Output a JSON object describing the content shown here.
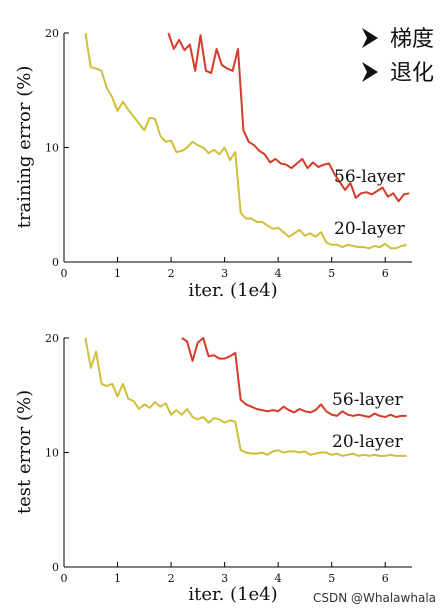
{
  "bullets": [
    {
      "icon": "arrow-bullet-icon",
      "text": "梯度"
    },
    {
      "icon": "arrow-bullet-icon",
      "text": "退化"
    }
  ],
  "watermark": "CSDN @Whalawhala",
  "colors": {
    "s56": "#d63b2a",
    "s20": "#cfc03a",
    "axis": "#000000"
  },
  "chart_data": [
    {
      "type": "line",
      "xlabel": "iter. (1e4)",
      "ylabel": "training error (%)",
      "xlim": [
        0,
        6.5
      ],
      "ylim": [
        0,
        20
      ],
      "xticks": [
        0,
        1,
        2,
        3,
        4,
        5,
        6
      ],
      "yticks": [
        0,
        10,
        20
      ],
      "series": [
        {
          "name": "56-layer",
          "color": "#d63b2a",
          "x": [
            1.95,
            2.05,
            2.15,
            2.25,
            2.35,
            2.45,
            2.55,
            2.65,
            2.75,
            2.85,
            2.95,
            3.05,
            3.15,
            3.25,
            3.35,
            3.45,
            3.55,
            3.65,
            3.75,
            3.85,
            3.95,
            4.05,
            4.15,
            4.25,
            4.35,
            4.45,
            4.55,
            4.65,
            4.75,
            4.85,
            4.95,
            5.05,
            5.15,
            5.25,
            5.35,
            5.45,
            5.55,
            5.65,
            5.75,
            5.85,
            5.95,
            6.05,
            6.15,
            6.25,
            6.35,
            6.45
          ],
          "values": [
            20.0,
            18.6,
            19.4,
            18.5,
            19.0,
            16.7,
            19.8,
            16.7,
            16.5,
            18.6,
            17.2,
            16.9,
            16.7,
            18.6,
            11.5,
            10.5,
            10.2,
            9.7,
            9.4,
            8.7,
            9.0,
            8.6,
            8.5,
            8.2,
            8.6,
            9.0,
            8.2,
            8.7,
            8.3,
            8.5,
            8.6,
            7.7,
            7.0,
            6.3,
            6.9,
            5.6,
            6.0,
            6.1,
            5.9,
            6.2,
            6.5,
            5.7,
            6.0,
            5.3,
            5.9,
            6.0
          ]
        },
        {
          "name": "20-layer",
          "color": "#cfc03a",
          "x": [
            0.4,
            0.5,
            0.6,
            0.7,
            0.8,
            0.9,
            1.0,
            1.1,
            1.2,
            1.3,
            1.4,
            1.5,
            1.6,
            1.7,
            1.8,
            1.9,
            2.0,
            2.1,
            2.2,
            2.3,
            2.4,
            2.5,
            2.6,
            2.7,
            2.8,
            2.9,
            3.0,
            3.1,
            3.2,
            3.3,
            3.4,
            3.5,
            3.6,
            3.7,
            3.8,
            3.9,
            4.0,
            4.1,
            4.2,
            4.3,
            4.4,
            4.5,
            4.6,
            4.7,
            4.8,
            4.9,
            5.0,
            5.1,
            5.2,
            5.3,
            5.4,
            5.5,
            5.6,
            5.7,
            5.8,
            5.9,
            6.0,
            6.1,
            6.2,
            6.3,
            6.4
          ],
          "values": [
            20.0,
            17.0,
            16.9,
            16.7,
            15.2,
            14.4,
            13.2,
            14.0,
            13.3,
            12.7,
            12.1,
            11.5,
            12.6,
            12.5,
            11.0,
            10.5,
            10.6,
            9.6,
            9.7,
            10.0,
            10.5,
            10.2,
            10.0,
            9.5,
            9.8,
            9.4,
            10.0,
            8.9,
            9.6,
            4.3,
            3.8,
            3.8,
            3.5,
            3.5,
            3.2,
            2.9,
            3.0,
            2.6,
            2.2,
            2.5,
            2.8,
            2.3,
            2.5,
            2.2,
            2.6,
            1.7,
            1.5,
            1.5,
            1.3,
            1.5,
            1.4,
            1.3,
            1.3,
            1.2,
            1.4,
            1.3,
            1.6,
            1.2,
            1.2,
            1.4,
            1.5
          ]
        }
      ]
    },
    {
      "type": "line",
      "xlabel": "iter. (1e4)",
      "ylabel": "test error (%)",
      "xlim": [
        0,
        6.5
      ],
      "ylim": [
        0,
        20
      ],
      "xticks": [
        0,
        1,
        2,
        3,
        4,
        5,
        6
      ],
      "yticks": [
        0,
        10,
        20
      ],
      "series": [
        {
          "name": "56-layer",
          "color": "#d63b2a",
          "x": [
            2.2,
            2.3,
            2.4,
            2.5,
            2.6,
            2.7,
            2.8,
            2.9,
            3.0,
            3.1,
            3.2,
            3.3,
            3.4,
            3.5,
            3.6,
            3.7,
            3.8,
            3.9,
            4.0,
            4.1,
            4.2,
            4.3,
            4.4,
            4.5,
            4.6,
            4.7,
            4.8,
            4.9,
            5.0,
            5.1,
            5.2,
            5.3,
            5.4,
            5.5,
            5.6,
            5.7,
            5.8,
            5.9,
            6.0,
            6.1,
            6.2,
            6.3,
            6.4
          ],
          "values": [
            20.0,
            19.7,
            18.0,
            19.6,
            20.0,
            18.4,
            18.5,
            18.2,
            18.2,
            18.4,
            18.7,
            14.6,
            14.2,
            14.0,
            13.8,
            13.7,
            13.6,
            13.7,
            13.6,
            14.0,
            13.7,
            13.5,
            13.8,
            13.6,
            13.5,
            13.7,
            14.2,
            13.6,
            13.3,
            13.2,
            13.6,
            13.3,
            13.2,
            13.3,
            13.2,
            13.1,
            13.4,
            13.2,
            13.1,
            13.3,
            13.1,
            13.2,
            13.2
          ]
        },
        {
          "name": "20-layer",
          "color": "#cfc03a",
          "x": [
            0.4,
            0.5,
            0.6,
            0.7,
            0.8,
            0.9,
            1.0,
            1.1,
            1.2,
            1.3,
            1.4,
            1.5,
            1.6,
            1.7,
            1.8,
            1.9,
            2.0,
            2.1,
            2.2,
            2.3,
            2.4,
            2.5,
            2.6,
            2.7,
            2.8,
            2.9,
            3.0,
            3.1,
            3.2,
            3.3,
            3.4,
            3.5,
            3.6,
            3.7,
            3.8,
            3.9,
            4.0,
            4.1,
            4.2,
            4.3,
            4.4,
            4.5,
            4.6,
            4.7,
            4.8,
            4.9,
            5.0,
            5.1,
            5.2,
            5.3,
            5.4,
            5.5,
            5.6,
            5.7,
            5.8,
            5.9,
            6.0,
            6.1,
            6.2,
            6.3,
            6.4
          ],
          "values": [
            20.0,
            17.4,
            18.8,
            16.0,
            15.8,
            16.0,
            14.9,
            16.0,
            14.7,
            14.5,
            13.8,
            14.2,
            13.9,
            14.4,
            14.0,
            14.3,
            13.3,
            13.7,
            13.3,
            13.8,
            13.1,
            12.9,
            13.1,
            12.6,
            13.0,
            12.9,
            12.6,
            12.8,
            12.7,
            10.2,
            10.0,
            9.9,
            9.9,
            10.0,
            9.8,
            10.1,
            10.2,
            10.0,
            10.1,
            10.1,
            10.0,
            10.1,
            9.8,
            9.9,
            10.0,
            10.0,
            9.8,
            9.9,
            9.7,
            9.8,
            9.9,
            9.7,
            9.8,
            9.7,
            9.8,
            9.7,
            9.7,
            9.8,
            9.7,
            9.7,
            9.7
          ]
        }
      ]
    }
  ]
}
